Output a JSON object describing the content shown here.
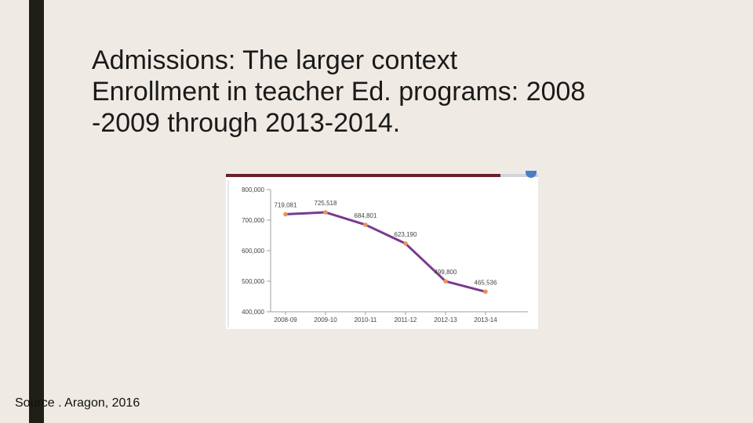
{
  "slide": {
    "title_lines": [
      "Admissions: The larger context",
      "Enrollment in teacher Ed. programs: 2008",
      "-2009 through 2013-2014."
    ],
    "source": "Source . Aragon, 2016"
  },
  "colors": {
    "line": "#7a3a8c",
    "point": "#e8935a",
    "axis": "#9aa0a6"
  },
  "chart_data": {
    "type": "line",
    "categories": [
      "2008-09",
      "2009-10",
      "2010-11",
      "2011-12",
      "2012-13",
      "2013-14"
    ],
    "values": [
      719081,
      725518,
      684801,
      623190,
      499800,
      465536
    ],
    "value_labels": [
      "719,081",
      "725,518",
      "684,801",
      "623,190",
      "499,800",
      "465,536"
    ],
    "y_ticks": [
      400000,
      500000,
      600000,
      700000,
      800000
    ],
    "y_tick_labels": [
      "400,000",
      "500,000",
      "600,000",
      "700,000",
      "800,000"
    ],
    "ylim": [
      400000,
      800000
    ],
    "grid": false
  }
}
